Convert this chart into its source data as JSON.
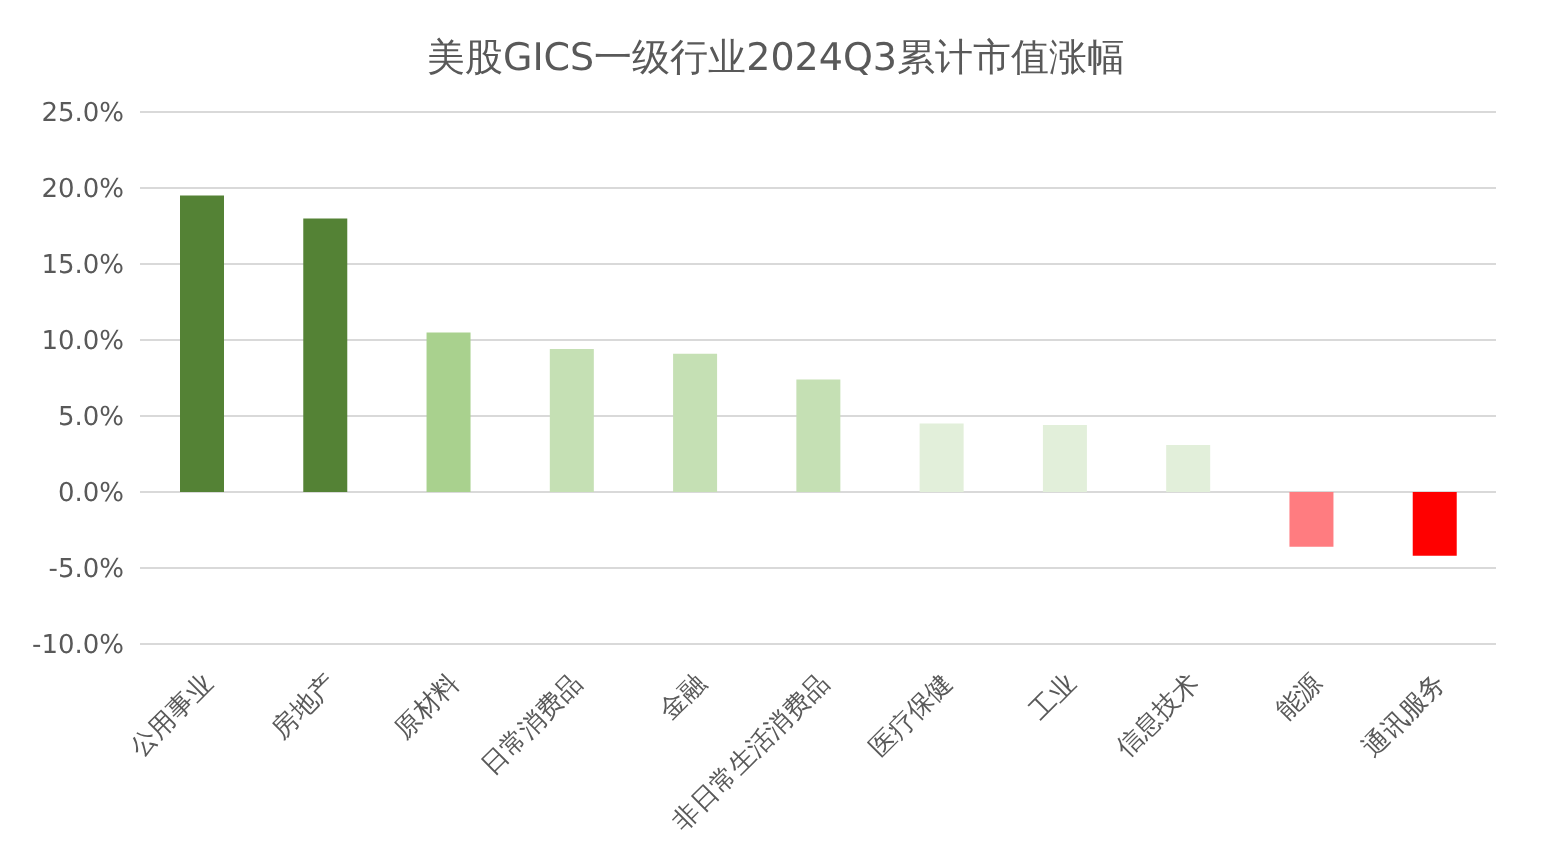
{
  "chart_data": {
    "type": "bar",
    "title": "美股GICS一级行业2024Q3累计市值涨幅",
    "categories": [
      "公用事业",
      "房地产",
      "原材料",
      "日常消费品",
      "金融",
      "非日常生活消费品",
      "医疗保健",
      "工业",
      "信息技术",
      "能源",
      "通讯服务"
    ],
    "values": [
      19.5,
      18.0,
      10.5,
      9.4,
      9.1,
      7.4,
      4.5,
      4.4,
      3.1,
      -3.6,
      -4.2
    ],
    "colors": [
      "#548235",
      "#548235",
      "#a9d18e",
      "#c5e0b4",
      "#c5e0b4",
      "#c5e0b4",
      "#e2efda",
      "#e2efda",
      "#e2efda",
      "#ff7c80",
      "#ff0000"
    ],
    "ylim": [
      -10,
      25
    ],
    "yticks": [
      {
        "value": -10,
        "label": "-10.0%"
      },
      {
        "value": -5,
        "label": "-5.0%"
      },
      {
        "value": 0,
        "label": "0.0%"
      },
      {
        "value": 5,
        "label": "5.0%"
      },
      {
        "value": 10,
        "label": "10.0%"
      },
      {
        "value": 15,
        "label": "15.0%"
      },
      {
        "value": 20,
        "label": "20.0%"
      },
      {
        "value": 25,
        "label": "25.0%"
      }
    ],
    "grid": "y",
    "legend": false
  }
}
